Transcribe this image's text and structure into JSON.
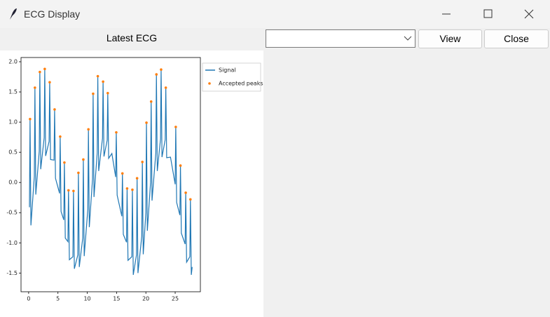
{
  "window": {
    "title": "ECG Display"
  },
  "panel": {
    "label": "Latest ECG"
  },
  "buttons": [
    "View",
    "Close"
  ],
  "chart_data": {
    "type": "line",
    "xlim": [
      -1.3,
      29.3
    ],
    "ylim": [
      -1.81,
      2.07
    ],
    "xticks": [
      0,
      5,
      10,
      15,
      20,
      25
    ],
    "yticks": [
      -1.5,
      {
        "value": -1,
        "label": "-1.0"
      },
      -0.5,
      {
        "value": 0,
        "label": "0.0"
      },
      0.5,
      {
        "value": 1,
        "label": "1.0"
      },
      1.5,
      {
        "value": 2,
        "label": "2.0"
      }
    ],
    "legend": "right",
    "series": [
      {
        "name": "Signal",
        "color": "#1f77b4",
        "x": [
          0.14,
          0.24,
          0.39,
          0.97,
          1.07,
          1.22,
          1.81,
          1.91,
          2.06,
          2.65,
          2.75,
          2.9,
          3.49,
          3.59,
          3.74,
          4.33,
          4.43,
          4.58,
          5.28,
          5.38,
          5.53,
          6.0,
          6.1,
          6.25,
          6.7,
          6.8,
          6.95,
          7.55,
          7.65,
          7.8,
          8.39,
          8.49,
          8.64,
          9.23,
          9.33,
          9.48,
          10.1,
          10.2,
          10.35,
          10.9,
          11.0,
          11.15,
          11.7,
          11.8,
          11.95,
          12.6,
          12.7,
          12.85,
          13.4,
          13.5,
          13.65,
          14.2,
          14.85,
          14.95,
          15.1,
          15.9,
          16.0,
          16.15,
          16.7,
          16.8,
          16.95,
          17.6,
          17.7,
          17.85,
          18.4,
          18.5,
          18.65,
          19.3,
          19.4,
          19.55,
          20.0,
          20.1,
          20.25,
          20.8,
          20.9,
          21.05,
          21.7,
          21.8,
          21.95,
          22.5,
          22.6,
          22.75,
          23.3,
          23.4,
          23.55,
          24.2,
          25.0,
          25.1,
          25.25,
          25.8,
          25.9,
          26.05,
          26.7,
          26.8,
          26.95,
          27.5,
          27.6,
          27.75,
          27.9
        ],
        "values": [
          -0.41,
          1.05,
          -0.71,
          0.1,
          1.57,
          -0.2,
          0.52,
          1.83,
          0.22,
          0.74,
          1.88,
          0.44,
          0.68,
          1.66,
          0.38,
          0.37,
          1.21,
          0.07,
          -0.18,
          0.76,
          -0.48,
          -0.62,
          0.33,
          -0.92,
          -0.98,
          -0.13,
          -1.28,
          -1.23,
          -0.14,
          -1.43,
          -1.2,
          0.16,
          -1.4,
          -0.92,
          0.38,
          -1.22,
          -0.44,
          0.88,
          -0.74,
          0.06,
          1.47,
          -0.24,
          0.49,
          1.76,
          0.19,
          0.73,
          1.67,
          0.43,
          0.7,
          1.48,
          0.4,
          0.48,
          0.09,
          0.83,
          -0.21,
          -0.56,
          0.15,
          -0.86,
          -0.99,
          -0.1,
          -1.29,
          -1.23,
          -0.12,
          -1.53,
          -1.2,
          0.07,
          -1.5,
          -0.89,
          0.34,
          -1.19,
          -0.5,
          0.99,
          -0.8,
          0.0,
          1.34,
          -0.3,
          0.49,
          1.79,
          0.19,
          0.72,
          1.87,
          0.42,
          0.71,
          1.57,
          0.41,
          0.42,
          -0.03,
          0.92,
          -0.33,
          -0.54,
          0.28,
          -0.84,
          -1.02,
          -0.17,
          -1.32,
          -1.23,
          -0.28,
          -1.53,
          -1.4
        ]
      },
      {
        "name": "Accepted peaks",
        "color": "#ff7f0e",
        "marker": "dot",
        "x": [
          0.24,
          1.07,
          1.91,
          2.75,
          3.59,
          4.43,
          5.38,
          6.1,
          6.8,
          7.65,
          8.49,
          9.33,
          10.2,
          11.0,
          11.8,
          12.7,
          13.5,
          14.95,
          16.0,
          16.8,
          17.7,
          18.5,
          19.4,
          20.1,
          20.9,
          21.8,
          22.6,
          23.4,
          25.1,
          25.9,
          26.8,
          27.6
        ],
        "values": [
          1.05,
          1.57,
          1.83,
          1.88,
          1.66,
          1.21,
          0.76,
          0.33,
          -0.13,
          -0.14,
          0.16,
          0.38,
          0.88,
          1.47,
          1.76,
          1.67,
          1.48,
          0.83,
          0.15,
          -0.1,
          -0.12,
          0.07,
          0.34,
          0.99,
          1.34,
          1.79,
          1.87,
          1.57,
          0.92,
          0.28,
          -0.17,
          -0.28
        ]
      }
    ]
  }
}
